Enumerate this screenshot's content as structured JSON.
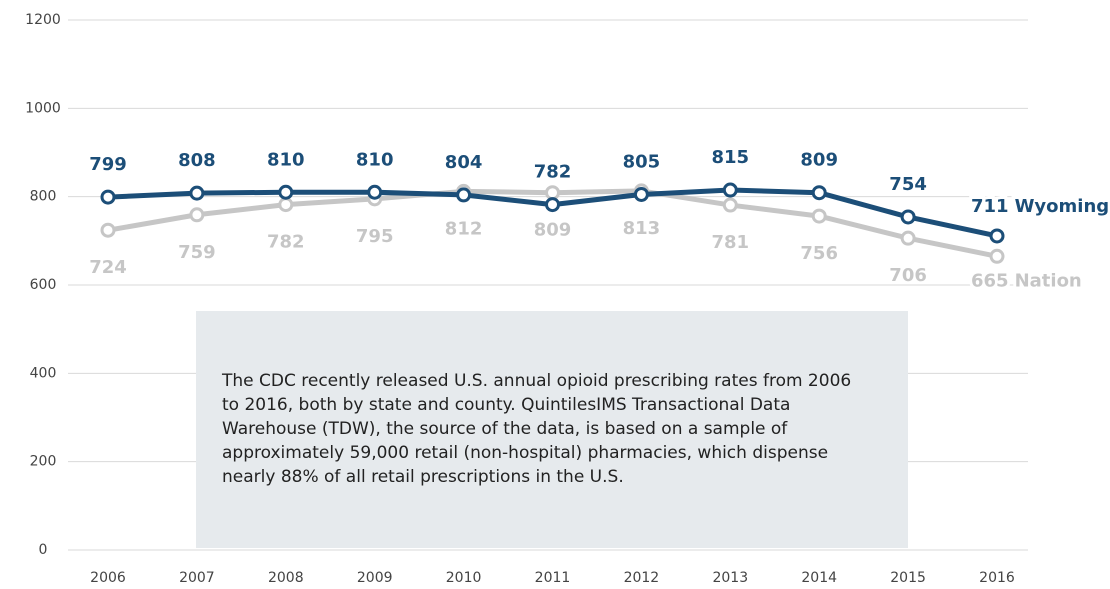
{
  "chart_data": {
    "type": "line",
    "x": [
      2006,
      2007,
      2008,
      2009,
      2010,
      2011,
      2012,
      2013,
      2014,
      2015,
      2016
    ],
    "series": [
      {
        "name": "Wyoming",
        "color": "#1c4e78",
        "values": [
          799,
          808,
          810,
          810,
          804,
          782,
          805,
          815,
          809,
          754,
          711
        ]
      },
      {
        "name": "Nation",
        "color": "#c6c6c6",
        "values": [
          724,
          759,
          782,
          795,
          812,
          809,
          813,
          781,
          756,
          706,
          665
        ]
      }
    ],
    "ylim": [
      0,
      1200
    ],
    "yticks": [
      0,
      200,
      400,
      600,
      800,
      1000,
      1200
    ],
    "grid": true,
    "annotation": "The CDC recently released U.S. annual opioid prescribing rates from 2006 to 2016, both by state and county. QuintilesIMS Transactional Data Warehouse (TDW), the source of the data, is based on a sample of approximately 59,000 retail (non-hospital) pharmacies, which dispense nearly 88% of all retail prescriptions in the U.S."
  }
}
